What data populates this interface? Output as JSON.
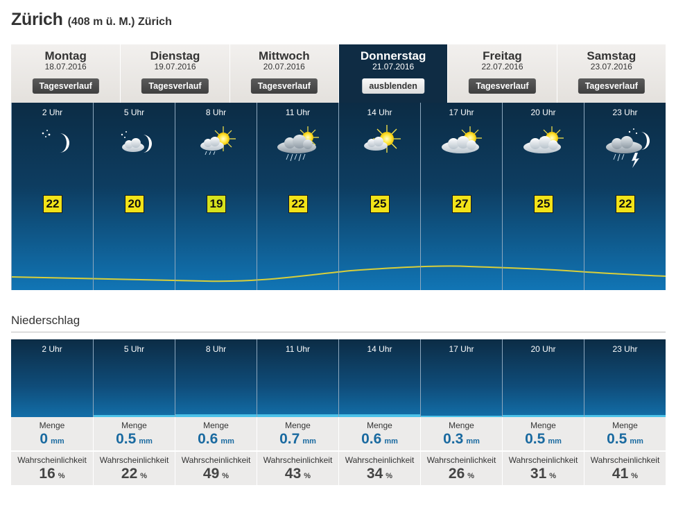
{
  "header": {
    "city": "Zürich",
    "subtitle": "(408 m ü. M.) Zürich"
  },
  "days": [
    {
      "name": "Montag",
      "date": "18.07.2016",
      "button": "Tagesverlauf",
      "active": false
    },
    {
      "name": "Dienstag",
      "date": "19.07.2016",
      "button": "Tagesverlauf",
      "active": false
    },
    {
      "name": "Mittwoch",
      "date": "20.07.2016",
      "button": "Tagesverlauf",
      "active": false
    },
    {
      "name": "Donnerstag",
      "date": "21.07.2016",
      "button": "ausblenden",
      "active": true
    },
    {
      "name": "Freitag",
      "date": "22.07.2016",
      "button": "Tagesverlauf",
      "active": false
    },
    {
      "name": "Samstag",
      "date": "23.07.2016",
      "button": "Tagesverlauf",
      "active": false
    }
  ],
  "forecast": {
    "hours": [
      {
        "time": "2 Uhr",
        "temp": "22",
        "icon": "night-clear-moon-icon"
      },
      {
        "time": "5 Uhr",
        "temp": "20",
        "icon": "night-cloudy-moon-icon"
      },
      {
        "time": "8 Uhr",
        "temp": "19",
        "icon": "sun-cloud-rain-icon"
      },
      {
        "time": "11 Uhr",
        "temp": "22",
        "icon": "sun-heavy-cloud-rain-icon"
      },
      {
        "time": "14 Uhr",
        "temp": "25",
        "icon": "sun-cloud-icon"
      },
      {
        "time": "17 Uhr",
        "temp": "27",
        "icon": "sun-overcast-icon"
      },
      {
        "time": "20 Uhr",
        "temp": "25",
        "icon": "sun-overcast-icon"
      },
      {
        "time": "23 Uhr",
        "temp": "22",
        "icon": "night-thunderstorm-icon"
      }
    ]
  },
  "precipitation": {
    "heading": "Niederschlag",
    "amount_label": "Menge",
    "probability_label": "Wahrscheinlichkeit",
    "amount_unit": "mm",
    "probability_unit": "%",
    "items": [
      {
        "time": "2 Uhr",
        "amount": "0",
        "probability": "16"
      },
      {
        "time": "5 Uhr",
        "amount": "0.5",
        "probability": "22"
      },
      {
        "time": "8 Uhr",
        "amount": "0.6",
        "probability": "49"
      },
      {
        "time": "11 Uhr",
        "amount": "0.7",
        "probability": "43"
      },
      {
        "time": "14 Uhr",
        "amount": "0.6",
        "probability": "34"
      },
      {
        "time": "17 Uhr",
        "amount": "0.3",
        "probability": "26"
      },
      {
        "time": "20 Uhr",
        "amount": "0.5",
        "probability": "31"
      },
      {
        "time": "23 Uhr",
        "amount": "0.5",
        "probability": "41"
      }
    ]
  },
  "colors": {
    "temp_badge": "#f2e318",
    "temp_line": "#d9cf3a",
    "precip_bar": "#4cc2e8",
    "active_tab": "#0f2c44"
  }
}
